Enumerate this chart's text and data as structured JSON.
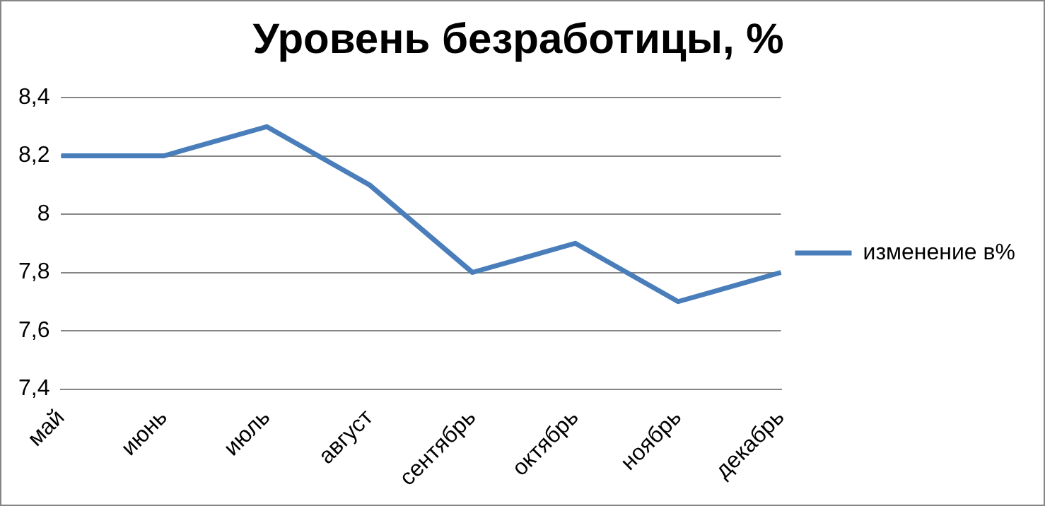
{
  "chart_data": {
    "type": "line",
    "title": "Уровень безработицы, %",
    "categories": [
      "май",
      "июнь",
      "июль",
      "август",
      "сентябрь",
      "октябрь",
      "ноябрь",
      "декабрь"
    ],
    "series": [
      {
        "name": "изменение в%",
        "color": "#4a7ebb",
        "values": [
          8.2,
          8.2,
          8.3,
          8.1,
          7.8,
          7.9,
          7.7,
          7.8
        ]
      }
    ],
    "ylim": [
      7.4,
      8.4
    ],
    "yticks": [
      {
        "value": 7.4,
        "label": "7,4"
      },
      {
        "value": 7.6,
        "label": "7,6"
      },
      {
        "value": 7.8,
        "label": "7,8"
      },
      {
        "value": 8,
        "label": "8"
      },
      {
        "value": 8.2,
        "label": "8,2"
      },
      {
        "value": 8.4,
        "label": "8,4"
      }
    ],
    "grid": "y",
    "legend": "right",
    "marker": "none",
    "line_style": "solid"
  }
}
